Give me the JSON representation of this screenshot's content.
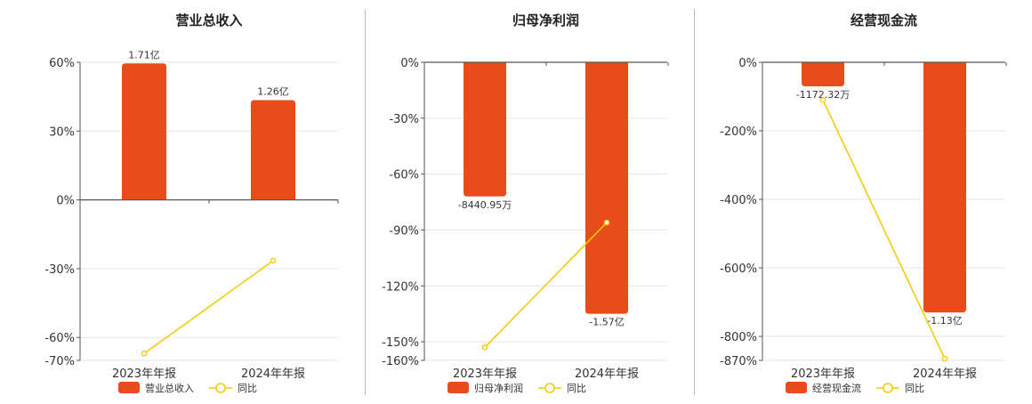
{
  "colors": {
    "bar": "#E84C1B",
    "line": "#F2CC0C",
    "grid": "#e6e6e6",
    "axis": "#555555"
  },
  "chart_data": [
    {
      "type": "bar",
      "title": "营业总收入",
      "categories": [
        "2023年年报",
        "2024年年报"
      ],
      "series": [
        {
          "name": "营业总收入",
          "type": "bar",
          "values": [
            59.5,
            43.5
          ],
          "labels": [
            "1.71亿",
            "1.26亿"
          ]
        },
        {
          "name": "同比",
          "type": "line",
          "values": [
            -67.0,
            -26.5
          ]
        }
      ],
      "yticks": [
        60,
        30,
        0,
        -30,
        -60,
        -70
      ],
      "ytick_labels": [
        "60%",
        "30%",
        "0%",
        "-30%",
        "-60%",
        "-70%"
      ],
      "ylim": [
        -70,
        60
      ],
      "grid": true,
      "legend": "bottom"
    },
    {
      "type": "bar",
      "title": "归母净利润",
      "categories": [
        "2023年年报",
        "2024年年报"
      ],
      "series": [
        {
          "name": "归母净利润",
          "type": "bar",
          "values": [
            -72,
            -135
          ],
          "labels": [
            "-8440.95万",
            "-1.57亿"
          ]
        },
        {
          "name": "同比",
          "type": "line",
          "values": [
            -153,
            -86
          ]
        }
      ],
      "yticks": [
        0,
        -30,
        -60,
        -90,
        -120,
        -150,
        -160
      ],
      "ytick_labels": [
        "0%",
        "-30%",
        "-60%",
        "-90%",
        "-120%",
        "-150%",
        "-160%"
      ],
      "ylim": [
        -160,
        0
      ],
      "grid": true,
      "legend": "bottom"
    },
    {
      "type": "bar",
      "title": "经营现金流",
      "categories": [
        "2023年年报",
        "2024年年报"
      ],
      "series": [
        {
          "name": "经营现金流",
          "type": "bar",
          "values": [
            -70,
            -730
          ],
          "labels": [
            "-1172.32万",
            "-1.13亿"
          ]
        },
        {
          "name": "同比",
          "type": "line",
          "values": [
            -110,
            -865
          ]
        }
      ],
      "yticks": [
        0,
        -200,
        -400,
        -600,
        -800,
        -870
      ],
      "ytick_labels": [
        "0%",
        "-200%",
        "-400%",
        "-600%",
        "-800%",
        "-870%"
      ],
      "ylim": [
        -870,
        0
      ],
      "grid": true,
      "legend": "bottom"
    }
  ]
}
